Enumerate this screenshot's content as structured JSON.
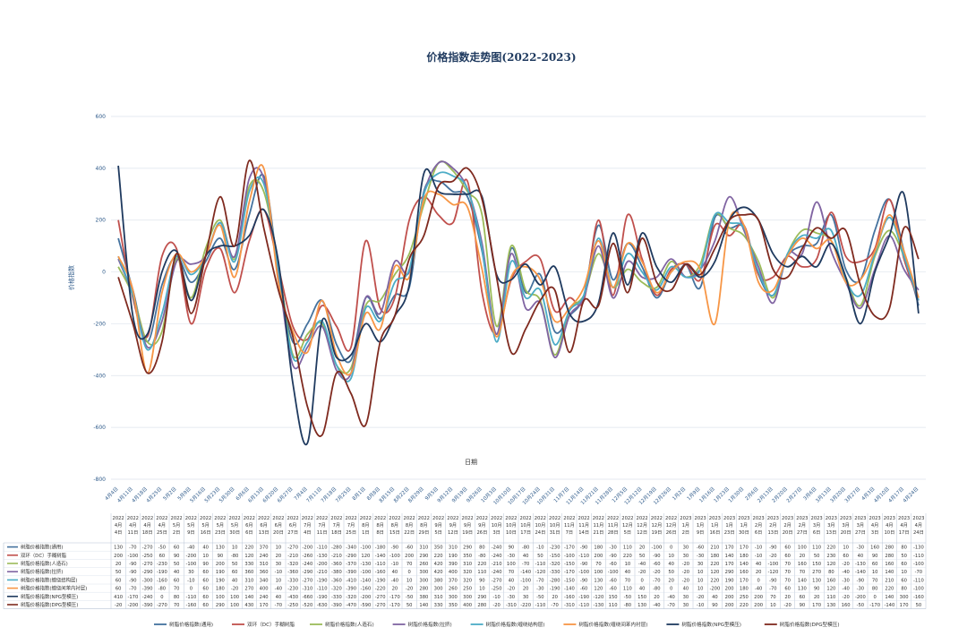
{
  "chart_data": {
    "type": "line",
    "title": "价格指数走势图(2022-2023)",
    "xlabel": "日期",
    "ylabel": "价格指数",
    "ylim": [
      -800,
      600
    ],
    "yticks": [
      600,
      400,
      200,
      0,
      -200,
      -400,
      -600,
      -800
    ],
    "grid": true,
    "legend_position": "bottom",
    "x": [
      "4月4日",
      "4月11日",
      "4月18日",
      "4月25日",
      "5月2日",
      "5月9日",
      "5月16日",
      "5月23日",
      "5月30日",
      "6月6日",
      "6月13日",
      "6月20日",
      "6月27日",
      "7月4日",
      "7月11日",
      "7月18日",
      "7月25日",
      "8月1日",
      "8月8日",
      "8月15日",
      "8月22日",
      "8月29日",
      "9月5日",
      "9月12日",
      "9月19日",
      "9月26日",
      "10月3日",
      "10月10日",
      "10月17日",
      "10月24日",
      "10月31日",
      "11月7日",
      "11月14日",
      "11月21日",
      "11月28日",
      "12月5日",
      "12月12日",
      "12月19日",
      "12月26日",
      "1月2日",
      "1月9日",
      "1月16日",
      "1月23日",
      "1月30日",
      "2月6日",
      "2月13日",
      "2月20日",
      "2月27日",
      "3月6日",
      "3月13日",
      "3月20日",
      "3月27日",
      "4月3日",
      "4月10日",
      "4月17日",
      "4月24日"
    ],
    "x_years": [
      "2022",
      "2022",
      "2022",
      "2022",
      "2022",
      "2022",
      "2022",
      "2022",
      "2022",
      "2022",
      "2022",
      "2022",
      "2022",
      "2022",
      "2022",
      "2022",
      "2022",
      "2022",
      "2022",
      "2022",
      "2022",
      "2022",
      "2022",
      "2022",
      "2022",
      "2022",
      "2022",
      "2022",
      "2022",
      "2022",
      "2022",
      "2022",
      "2022",
      "2022",
      "2022",
      "2022",
      "2022",
      "2022",
      "2022",
      "2023",
      "2023",
      "2023",
      "2023",
      "2023",
      "2023",
      "2023",
      "2023",
      "2023",
      "2023",
      "2023",
      "2023",
      "2023",
      "2023",
      "2023",
      "2023",
      "2023"
    ],
    "table_dates": [
      "4月4日",
      "4月11日",
      "4月18日",
      "4月25日",
      "5月2日",
      "5月9日",
      "5月16日",
      "5月23日",
      "5月30日",
      "6月6日",
      "6月13日",
      "6月20日",
      "6月27日",
      "7月4日",
      "7月11日",
      "7月18日",
      "7月25日",
      "8月1日",
      "8月8日",
      "8月15日",
      "8月22日",
      "8月29日",
      "9月5日",
      "9月12日",
      "9月19日",
      "9月26日",
      "10月3日",
      "10月10日",
      "10月17日",
      "10月24日",
      "10月31日",
      "11月7日",
      "11月14日",
      "11月21日",
      "11月28日",
      "12月5日",
      "12月12日",
      "12月19日",
      "12月26日",
      "1月2日",
      "1月9日",
      "1月16日",
      "1月23日",
      "1月30日",
      "2月6日",
      "2月13日",
      "2月20日",
      "2月27日",
      "3月6日",
      "3月13日",
      "3月20日",
      "3月27日",
      "4月3日",
      "4月10日",
      "4月17日",
      "4月24日"
    ],
    "series": [
      {
        "name": "树脂价格指数(通用)",
        "color": "#44729e",
        "values": [
          130,
          -70,
          -270,
          -50,
          60,
          -40,
          40,
          130,
          10,
          220,
          370,
          10,
          -270,
          -200,
          -110,
          -280,
          -340,
          -100,
          -180,
          -90,
          -60,
          310,
          350,
          310,
          290,
          80,
          -240,
          90,
          -80,
          -10,
          -230,
          -170,
          -90,
          180,
          -30,
          110,
          20,
          -100,
          0,
          30,
          -60,
          210,
          170,
          170,
          -10,
          -90,
          60,
          100,
          110,
          220,
          10,
          -30,
          160,
          280,
          80,
          -130
        ]
      },
      {
        "name": "双环（DC）手糊树脂",
        "color": "#c0504d",
        "values": [
          200,
          -100,
          -250,
          60,
          90,
          -200,
          10,
          90,
          -80,
          120,
          240,
          20,
          -210,
          -260,
          -130,
          -210,
          -290,
          120,
          -140,
          -100,
          200,
          290,
          220,
          190,
          350,
          -80,
          -240,
          -30,
          40,
          50,
          -150,
          -100,
          -110,
          200,
          -90,
          220,
          50,
          -90,
          10,
          30,
          -30,
          180,
          140,
          180,
          -10,
          -20,
          60,
          20,
          50,
          230,
          60,
          40,
          90,
          280,
          50,
          -110
        ]
      },
      {
        "name": "树脂价格指数(人造石)",
        "color": "#9bbb59",
        "values": [
          20,
          -90,
          -270,
          -230,
          50,
          -100,
          90,
          200,
          50,
          330,
          310,
          30,
          -320,
          -240,
          -200,
          -360,
          -370,
          -130,
          -110,
          -10,
          70,
          260,
          420,
          390,
          310,
          220,
          -210,
          100,
          -70,
          -110,
          -320,
          -150,
          -90,
          70,
          -60,
          10,
          -40,
          -60,
          40,
          -20,
          30,
          220,
          170,
          140,
          40,
          -100,
          70,
          160,
          150,
          120,
          -20,
          -130,
          60,
          160,
          60,
          -100
        ]
      },
      {
        "name": "树脂价格指数(拉挤)",
        "color": "#8064a2",
        "values": [
          50,
          -90,
          -290,
          -190,
          40,
          30,
          60,
          190,
          60,
          360,
          360,
          -10,
          -360,
          -290,
          -210,
          -380,
          -390,
          -100,
          -160,
          40,
          0,
          300,
          420,
          400,
          320,
          110,
          -240,
          70,
          -140,
          -120,
          -330,
          -170,
          -100,
          100,
          -100,
          40,
          -20,
          -20,
          50,
          -20,
          10,
          120,
          290,
          160,
          20,
          -120,
          70,
          70,
          270,
          80,
          -40,
          -140,
          10,
          140,
          10,
          -70
        ]
      },
      {
        "name": "树脂价格指数(缠绕结构层)",
        "color": "#4bacc6",
        "values": [
          60,
          -90,
          -300,
          -160,
          60,
          -10,
          60,
          190,
          40,
          310,
          340,
          10,
          -330,
          -270,
          -190,
          -360,
          -410,
          -140,
          -190,
          -40,
          10,
          300,
          380,
          370,
          320,
          90,
          -270,
          40,
          -100,
          -70,
          -280,
          -150,
          -90,
          130,
          -60,
          70,
          0,
          -70,
          20,
          -20,
          10,
          220,
          190,
          170,
          0,
          -90,
          70,
          140,
          130,
          160,
          -30,
          -90,
          70,
          210,
          60,
          -110
        ]
      },
      {
        "name": "树脂价格指数(缠绕间苯内衬层)",
        "color": "#f79646",
        "values": [
          60,
          -70,
          -390,
          -80,
          70,
          0,
          60,
          180,
          -20,
          270,
          400,
          -40,
          -230,
          -310,
          -110,
          -320,
          -390,
          -160,
          -220,
          20,
          -20,
          280,
          300,
          260,
          250,
          10,
          -250,
          -20,
          20,
          -30,
          -190,
          -140,
          -60,
          120,
          -60,
          110,
          40,
          -80,
          0,
          40,
          10,
          -200,
          200,
          180,
          -40,
          -70,
          60,
          130,
          90,
          120,
          -40,
          -30,
          80,
          220,
          80,
          -100
        ]
      },
      {
        "name": "树脂价格指数(NPG型模压)",
        "color": "#1f3a5f",
        "values": [
          410,
          -170,
          -240,
          0,
          80,
          -110,
          60,
          100,
          100,
          140,
          240,
          40,
          -430,
          -660,
          -190,
          -330,
          -320,
          -200,
          -270,
          -170,
          -50,
          380,
          310,
          300,
          300,
          290,
          -10,
          -30,
          30,
          -50,
          20,
          -160,
          -190,
          -120,
          150,
          -50,
          150,
          20,
          -40,
          30,
          -20,
          40,
          200,
          250,
          200,
          70,
          20,
          60,
          20,
          110,
          -20,
          -200,
          0,
          140,
          300,
          -160
        ]
      },
      {
        "name": "树脂价格指数(DPG型模压)",
        "color": "#7f2a1f",
        "values": [
          -20,
          -200,
          -390,
          -270,
          70,
          -160,
          60,
          290,
          100,
          430,
          170,
          -70,
          -250,
          -520,
          -630,
          -390,
          -470,
          -590,
          -270,
          -170,
          50,
          140,
          330,
          350,
          400,
          280,
          -20,
          -310,
          -220,
          -110,
          -70,
          -310,
          -110,
          -130,
          110,
          -80,
          130,
          -40,
          -70,
          30,
          -10,
          90,
          200,
          220,
          200,
          10,
          -20,
          90,
          170,
          130,
          160,
          -50,
          -170,
          -140,
          170,
          50
        ]
      }
    ]
  }
}
